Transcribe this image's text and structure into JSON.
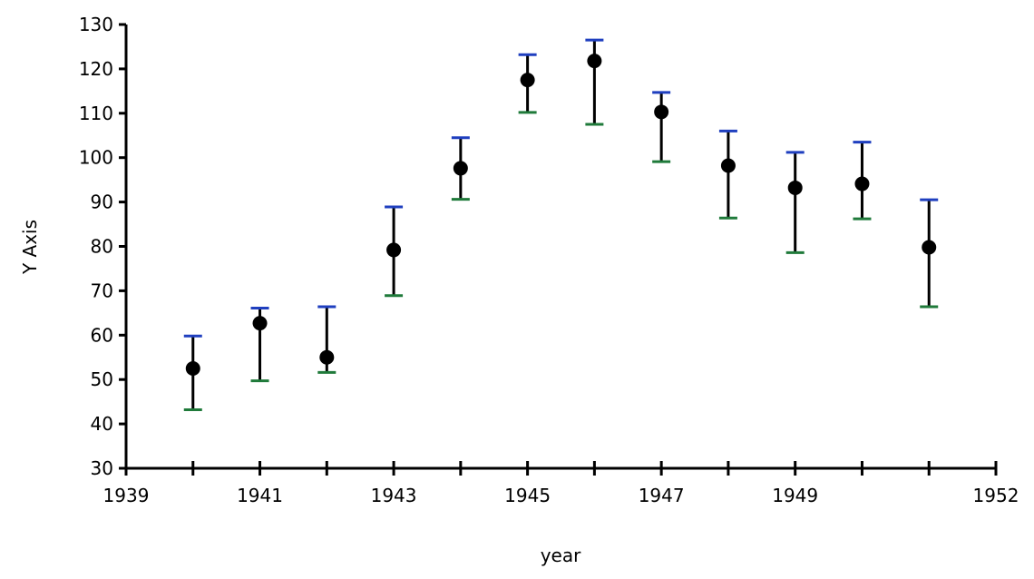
{
  "chart_data": {
    "type": "scatter",
    "title": "",
    "xlabel": "year",
    "ylabel": "Y Axis",
    "xlim": [
      1939,
      1952
    ],
    "ylim": [
      30,
      130
    ],
    "x_ticks": [
      1939,
      1940,
      1941,
      1942,
      1943,
      1944,
      1945,
      1946,
      1947,
      1948,
      1949,
      1950,
      1951,
      1952
    ],
    "x_tick_labels": [
      "1939",
      "",
      "1941",
      "",
      "1943",
      "",
      "1945",
      "",
      "1947",
      "",
      "1949",
      "",
      "",
      "1952"
    ],
    "y_ticks": [
      30,
      40,
      50,
      60,
      70,
      80,
      90,
      100,
      110,
      120,
      130
    ],
    "y_tick_labels": [
      "30",
      "40",
      "50",
      "60",
      "70",
      "80",
      "90",
      "100",
      "110",
      "120",
      "130"
    ],
    "grid": false,
    "colors": {
      "point": "#000000",
      "upper_cap": "#1f3fbf",
      "lower_cap": "#1f7a3a"
    },
    "series": [
      {
        "points": [
          {
            "x": 1940,
            "y": 52.5,
            "upper": 59.8,
            "lower": 43.2
          },
          {
            "x": 1941,
            "y": 62.7,
            "upper": 66.1,
            "lower": 49.7
          },
          {
            "x": 1942,
            "y": 55.0,
            "upper": 66.4,
            "lower": 51.6
          },
          {
            "x": 1943,
            "y": 79.2,
            "upper": 88.9,
            "lower": 68.9
          },
          {
            "x": 1944,
            "y": 97.6,
            "upper": 104.5,
            "lower": 90.6
          },
          {
            "x": 1945,
            "y": 117.5,
            "upper": 123.2,
            "lower": 110.2
          },
          {
            "x": 1946,
            "y": 121.8,
            "upper": 126.5,
            "lower": 107.5
          },
          {
            "x": 1947,
            "y": 110.3,
            "upper": 114.7,
            "lower": 99.1
          },
          {
            "x": 1948,
            "y": 98.2,
            "upper": 106.0,
            "lower": 86.4
          },
          {
            "x": 1949,
            "y": 93.2,
            "upper": 101.2,
            "lower": 78.6
          },
          {
            "x": 1950,
            "y": 94.1,
            "upper": 103.5,
            "lower": 86.2
          },
          {
            "x": 1951,
            "y": 79.8,
            "upper": 90.5,
            "lower": 66.4
          }
        ]
      }
    ]
  }
}
